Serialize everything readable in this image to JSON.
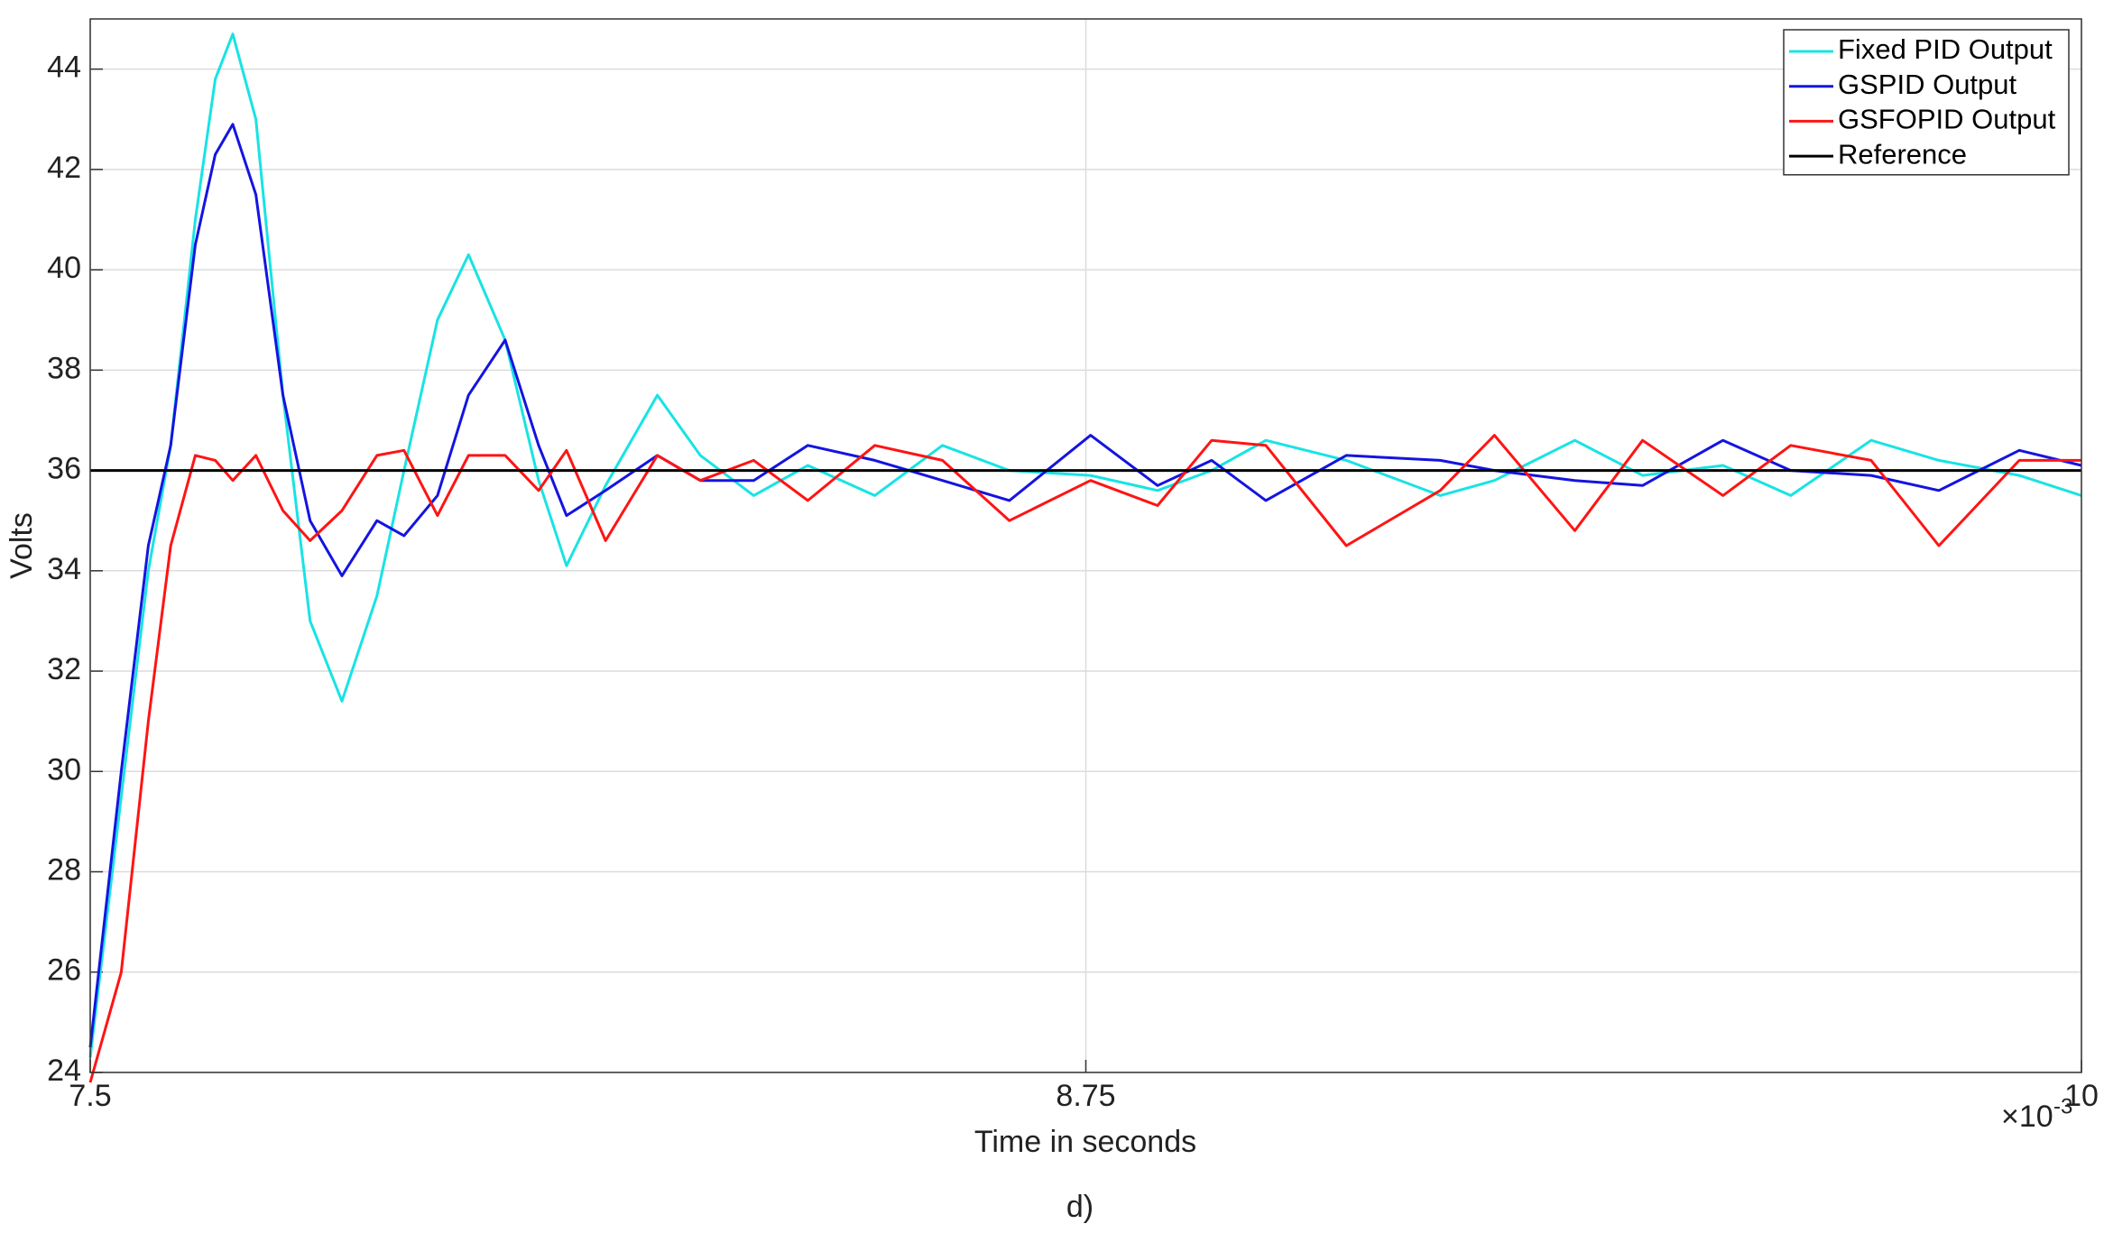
{
  "chart_data": {
    "type": "line",
    "xlabel": "Time in seconds",
    "ylabel": "Volts",
    "x_multiplier": "×10",
    "x_exponent": "-3",
    "caption": "d)",
    "x": [
      7.5,
      7.539,
      7.573,
      7.601,
      7.632,
      7.657,
      7.679,
      7.708,
      7.742,
      7.776,
      7.816,
      7.86,
      7.894,
      7.936,
      7.975,
      8.021,
      8.063,
      8.098,
      8.147,
      8.212,
      8.266,
      8.333,
      8.401,
      8.485,
      8.57,
      8.654,
      8.756,
      8.84,
      8.908,
      8.976,
      9.077,
      9.195,
      9.263,
      9.364,
      9.449,
      9.55,
      9.635,
      9.736,
      9.821,
      9.922,
      10
    ],
    "series": [
      {
        "name": "Fixed PID Output",
        "color": "#19e3e3",
        "values": [
          24.3,
          29.5,
          34,
          36.5,
          41,
          43.8,
          44.7,
          43,
          37.5,
          33,
          31.4,
          33.5,
          36,
          39,
          40.3,
          38.6,
          35.8,
          34.1,
          35.7,
          37.5,
          36.3,
          35.5,
          36.1,
          35.5,
          36.5,
          36,
          35.9,
          35.6,
          36,
          36.6,
          36.2,
          35.5,
          35.8,
          36.6,
          35.9,
          36.1,
          35.5,
          36.6,
          36.2,
          35.9,
          35.5
        ]
      },
      {
        "name": "GSPID Output",
        "color": "#1414e0",
        "values": [
          24.5,
          30,
          34.5,
          36.5,
          40.5,
          42.3,
          42.9,
          41.5,
          37.5,
          35,
          33.9,
          35,
          34.7,
          35.5,
          37.5,
          38.6,
          36.5,
          35.1,
          35.6,
          36.3,
          35.8,
          35.8,
          36.5,
          36.2,
          35.8,
          35.4,
          36.7,
          35.7,
          36.2,
          35.4,
          36.3,
          36.2,
          36,
          35.8,
          35.7,
          36.6,
          36,
          35.9,
          35.6,
          36.4,
          36.1
        ]
      },
      {
        "name": "GSFOPID Output",
        "color": "#ff1414",
        "values": [
          23.8,
          26,
          31,
          34.5,
          36.3,
          36.2,
          35.8,
          36.3,
          35.2,
          34.6,
          35.2,
          36.3,
          36.4,
          35.1,
          36.3,
          36.3,
          35.6,
          36.4,
          34.6,
          36.3,
          35.8,
          36.2,
          35.4,
          36.5,
          36.2,
          35,
          35.8,
          35.3,
          36.6,
          36.5,
          34.5,
          35.6,
          36.7,
          34.8,
          36.6,
          35.5,
          36.5,
          36.2,
          34.5,
          36.2,
          36.2
        ]
      },
      {
        "name": "Reference",
        "color": "#000000",
        "values": [
          36,
          36,
          36,
          36,
          36,
          36,
          36,
          36,
          36,
          36,
          36,
          36,
          36,
          36,
          36,
          36,
          36,
          36,
          36,
          36,
          36,
          36,
          36,
          36,
          36,
          36,
          36,
          36,
          36,
          36,
          36,
          36,
          36,
          36,
          36,
          36,
          36,
          36,
          36,
          36,
          36
        ]
      }
    ],
    "xlim": [
      7.5,
      10
    ],
    "xticks": [
      7.5,
      8.75,
      10
    ],
    "ylim": [
      24,
      45
    ],
    "yticks": [
      24,
      26,
      28,
      30,
      32,
      34,
      36,
      38,
      40,
      42,
      44
    ],
    "grid": true,
    "legend": "upper right"
  }
}
